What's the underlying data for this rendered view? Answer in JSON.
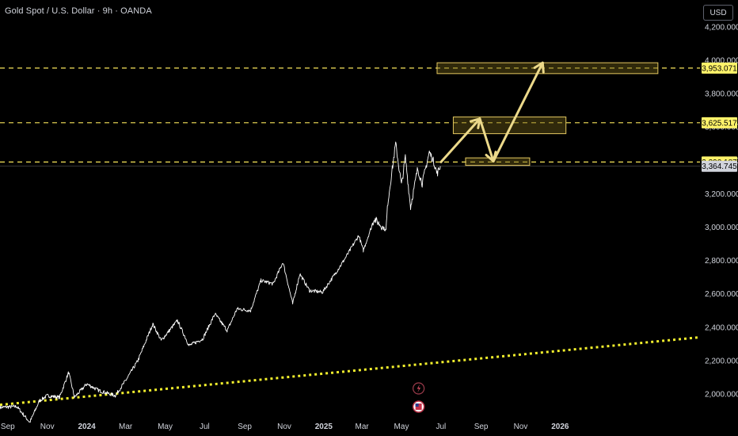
{
  "header": {
    "title": "Gold Spot / U.S. Dollar · 9h · OANDA",
    "currency": "USD"
  },
  "chart_data": {
    "type": "line",
    "symbol": "XAUUSD",
    "y_axis_labels": [
      "4,200.000",
      "4,000.000",
      "3,800.000",
      "3,600.000",
      "3,400.000",
      "3,200.000",
      "3,000.000",
      "2,800.000",
      "2,600.000",
      "2,400.000",
      "2,200.000",
      "2,000.000"
    ],
    "y_axis_values": [
      4200,
      4000,
      3800,
      3600,
      3400,
      3200,
      3000,
      2800,
      2600,
      2400,
      2200,
      2000
    ],
    "x_axis_labels": [
      {
        "text": "Sep",
        "bold": false
      },
      {
        "text": "Nov",
        "bold": false
      },
      {
        "text": "2024",
        "bold": true
      },
      {
        "text": "Mar",
        "bold": false
      },
      {
        "text": "May",
        "bold": false
      },
      {
        "text": "Jul",
        "bold": false
      },
      {
        "text": "Sep",
        "bold": false
      },
      {
        "text": "Nov",
        "bold": false
      },
      {
        "text": "2025",
        "bold": true
      },
      {
        "text": "Mar",
        "bold": false
      },
      {
        "text": "May",
        "bold": false
      },
      {
        "text": "Jul",
        "bold": false
      },
      {
        "text": "Sep",
        "bold": false
      },
      {
        "text": "Nov",
        "bold": false
      },
      {
        "text": "2026",
        "bold": true
      }
    ],
    "x_axis_dates": [
      "2023-09-01",
      "2023-11-01",
      "2024-01-01",
      "2024-03-01",
      "2024-05-01",
      "2024-07-01",
      "2024-09-01",
      "2024-11-01",
      "2025-01-01",
      "2025-03-01",
      "2025-05-01",
      "2025-07-01",
      "2025-09-01",
      "2025-11-01",
      "2026-01-01"
    ],
    "ylim": [
      1900,
      4250
    ],
    "xlim": [
      "2023-08-20",
      "2026-08-05"
    ],
    "series": [
      {
        "points": [
          [
            "2023-08-20",
            1920
          ],
          [
            "2023-09-15",
            1925
          ],
          [
            "2023-10-05",
            1830
          ],
          [
            "2023-10-20",
            1960
          ],
          [
            "2023-11-01",
            1990
          ],
          [
            "2023-11-20",
            1980
          ],
          [
            "2023-12-04",
            2130
          ],
          [
            "2023-12-13",
            1980
          ],
          [
            "2024-01-01",
            2060
          ],
          [
            "2024-01-20",
            2020
          ],
          [
            "2024-02-14",
            1990
          ],
          [
            "2024-03-01",
            2080
          ],
          [
            "2024-03-20",
            2200
          ],
          [
            "2024-04-12",
            2420
          ],
          [
            "2024-04-25",
            2320
          ],
          [
            "2024-05-20",
            2440
          ],
          [
            "2024-06-07",
            2290
          ],
          [
            "2024-06-28",
            2330
          ],
          [
            "2024-07-17",
            2480
          ],
          [
            "2024-08-05",
            2380
          ],
          [
            "2024-08-20",
            2510
          ],
          [
            "2024-09-10",
            2500
          ],
          [
            "2024-09-26",
            2680
          ],
          [
            "2024-10-15",
            2660
          ],
          [
            "2024-10-30",
            2790
          ],
          [
            "2024-11-14",
            2540
          ],
          [
            "2024-11-25",
            2720
          ],
          [
            "2024-12-10",
            2620
          ],
          [
            "2024-12-30",
            2610
          ],
          [
            "2025-01-15",
            2700
          ],
          [
            "2025-02-01",
            2800
          ],
          [
            "2025-02-24",
            2950
          ],
          [
            "2025-03-03",
            2860
          ],
          [
            "2025-03-20",
            3050
          ],
          [
            "2025-04-07",
            2980
          ],
          [
            "2025-04-10",
            3150
          ],
          [
            "2025-04-22",
            3500
          ],
          [
            "2025-05-01",
            3250
          ],
          [
            "2025-05-07",
            3420
          ],
          [
            "2025-05-15",
            3120
          ],
          [
            "2025-05-26",
            3350
          ],
          [
            "2025-06-02",
            3260
          ],
          [
            "2025-06-13",
            3450
          ],
          [
            "2025-06-20",
            3390
          ],
          [
            "2025-06-25",
            3320
          ],
          [
            "2025-06-30",
            3364.745
          ]
        ]
      }
    ],
    "current_price": "3,364.745",
    "levels": [
      {
        "value": 3953.071,
        "label": "3,953.071"
      },
      {
        "value": 3625.517,
        "label": "3,625.517"
      },
      {
        "value": 3390.187,
        "label": "3,390.187"
      }
    ],
    "zones": [
      {
        "date_start": "2025-06-25",
        "date_end": "2026-06-01",
        "y_low": 3920,
        "y_high": 3985
      },
      {
        "date_start": "2025-07-20",
        "date_end": "2026-01-10",
        "y_low": 3560,
        "y_high": 3660
      },
      {
        "date_start": "2025-08-08",
        "date_end": "2025-11-15",
        "y_low": 3370,
        "y_high": 3415
      }
    ],
    "projection_path": [
      [
        "2025-07-01",
        3390
      ],
      [
        "2025-08-30",
        3650
      ],
      [
        "2025-09-20",
        3395
      ],
      [
        "2025-12-05",
        3985
      ]
    ],
    "trendline": {
      "start": [
        "2023-08-20",
        1935
      ],
      "end": [
        "2026-08-05",
        2340
      ]
    },
    "colors": {
      "background": "#000000",
      "price": "#ffffff",
      "level_line": "#f7e55a",
      "zone_fill": "#6a5a18",
      "zone_border": "#e3c760",
      "projection": "#ecd98a",
      "trendline": "#f3f02d",
      "current_price_tag": "#d1d4dc",
      "level_tag": "#fff36a"
    },
    "markers": [
      {
        "icon": "lightning-icon",
        "date": "2025-05-25"
      },
      {
        "icon": "us-flag-icon",
        "date": "2025-05-25"
      }
    ]
  }
}
